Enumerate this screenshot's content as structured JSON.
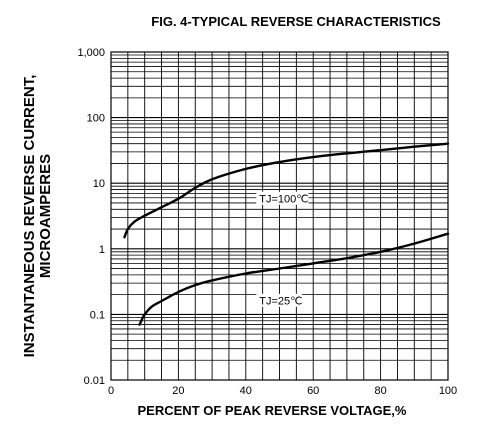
{
  "chart_data": {
    "type": "line",
    "title": "FIG. 4-TYPICAL REVERSE CHARACTERISTICS",
    "xlabel": "PERCENT OF PEAK REVERSE VOLTAGE,%",
    "ylabel_line1": "INSTANTANEOUS REVERSE CURRENT,",
    "ylabel_line2": "MICROAMPERES",
    "xlim": [
      0,
      100
    ],
    "ylim": [
      0.01,
      1000
    ],
    "yscale": "log",
    "grid": true,
    "x_ticks": [
      0,
      20,
      40,
      60,
      80,
      100
    ],
    "x_tick_labels": [
      "0",
      "20",
      "40",
      "60",
      "80",
      "100"
    ],
    "y_ticks": [
      0.01,
      0.1,
      1,
      10,
      100,
      1000
    ],
    "y_tick_labels": [
      "0.01",
      "0.1",
      "1",
      "10",
      "100",
      "1,000"
    ],
    "series": [
      {
        "name": "TJ=100℃",
        "x": [
          4,
          5,
          7,
          10,
          15,
          20,
          25,
          30,
          40,
          50,
          60,
          70,
          80,
          90,
          100
        ],
        "y": [
          1.5,
          2.0,
          2.6,
          3.2,
          4.3,
          5.8,
          8.5,
          11.5,
          16.5,
          21.0,
          25.0,
          28.5,
          32.0,
          36.0,
          40.0
        ]
      },
      {
        "name": "TJ=25℃",
        "x": [
          8.5,
          9,
          10,
          12,
          15,
          20,
          25,
          30,
          40,
          50,
          60,
          70,
          80,
          90,
          100
        ],
        "y": [
          0.07,
          0.08,
          0.1,
          0.13,
          0.16,
          0.22,
          0.28,
          0.33,
          0.42,
          0.5,
          0.6,
          0.72,
          0.9,
          1.2,
          1.7
        ]
      }
    ],
    "annotations": [
      {
        "text": "TJ=100℃",
        "x": 44,
        "y": 5.4
      },
      {
        "text": "TJ=25℃",
        "x": 44,
        "y": 0.15
      }
    ]
  }
}
